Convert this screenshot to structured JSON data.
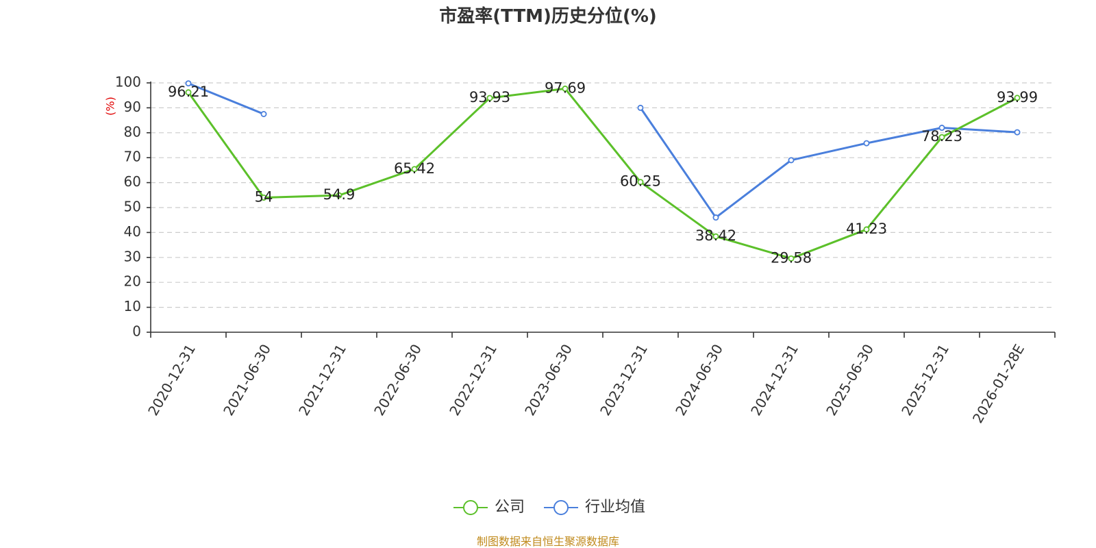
{
  "chart_data": {
    "type": "line",
    "title": "市盈率(TTM)历史分位(%)",
    "ylabel": "(%)",
    "ylim": [
      0,
      100
    ],
    "yticks": [
      0,
      10,
      20,
      30,
      40,
      50,
      60,
      70,
      80,
      90,
      100
    ],
    "grid": true,
    "legend_position": "bottom",
    "categories": [
      "2020-12-31",
      "2021-06-30",
      "2021-12-31",
      "2022-06-30",
      "2022-12-31",
      "2023-06-30",
      "2023-12-31",
      "2024-06-30",
      "2024-12-31",
      "2025-06-30",
      "2025-12-31",
      "2026-01-28E"
    ],
    "series": [
      {
        "name": "公司",
        "color": "#5cc02a",
        "values": [
          96.21,
          54,
          54.9,
          65.42,
          93.93,
          97.69,
          60.25,
          38.42,
          29.58,
          41.23,
          78.23,
          93.99
        ],
        "labels": [
          "96.21",
          "54",
          "54.9",
          "65.42",
          "93.93",
          "97.69",
          "60.25",
          "38.42",
          "29.58",
          "41.23",
          "78.23",
          "93.99"
        ]
      },
      {
        "name": "行业均值",
        "color": "#4a7fdc",
        "values": [
          99.8,
          87.5,
          null,
          null,
          null,
          null,
          90,
          46,
          69,
          75.8,
          82,
          80.2
        ]
      }
    ]
  },
  "footer": {
    "source": "制图数据来自恒生聚源数据库"
  }
}
